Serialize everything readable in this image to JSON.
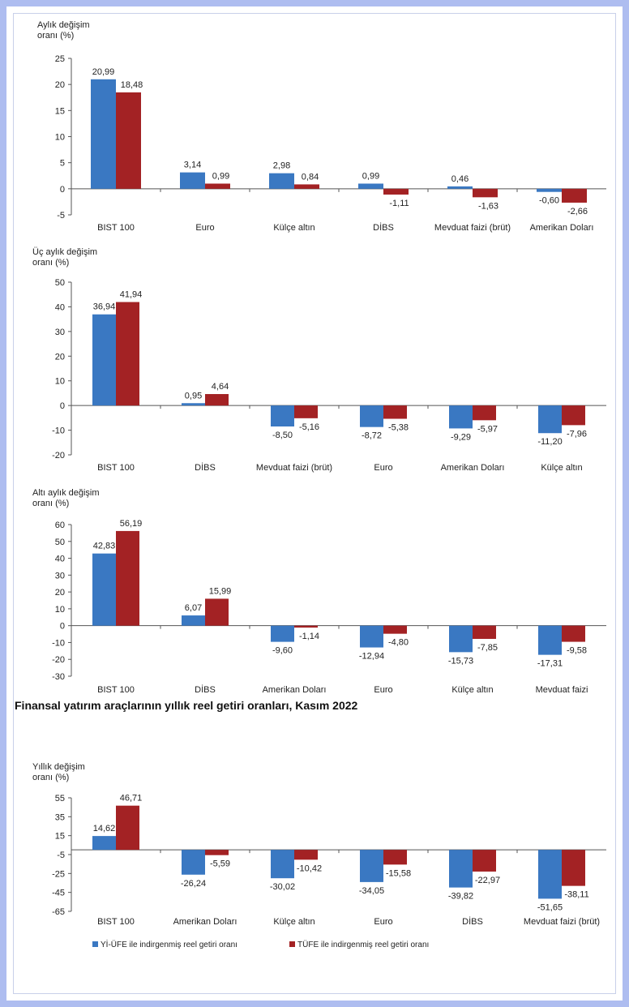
{
  "colors": {
    "series1": "#3a78c2",
    "series2": "#a32224"
  },
  "legend": {
    "series1": "Yİ-ÜFE ile indirgenmiş reel getiri oranı",
    "series2": "TÜFE ile indirgenmiş reel getiri oranı"
  },
  "chart_data": [
    {
      "type": "bar",
      "ylabel": [
        "Aylık değişim",
        "oranı (%)"
      ],
      "yticks": [
        25,
        20,
        15,
        10,
        5,
        0,
        -5
      ],
      "ylim": [
        -5,
        25
      ],
      "categories": [
        "BIST 100",
        "Euro",
        "Külçe altın",
        "DİBS",
        "Mevduat faizi (brüt)",
        "Amerikan Doları"
      ],
      "series": [
        {
          "name": "Yİ-ÜFE ile indirgenmiş reel getiri oranı",
          "values": [
            20.99,
            3.14,
            2.98,
            0.99,
            0.46,
            -0.6
          ]
        },
        {
          "name": "TÜFE ile indirgenmiş reel getiri oranı",
          "values": [
            18.48,
            0.99,
            0.84,
            -1.11,
            -1.63,
            -2.66
          ]
        }
      ],
      "value_labels": [
        [
          "20,99",
          "3,14",
          "2,98",
          "0,99",
          "0,46",
          "-0,60"
        ],
        [
          "18,48",
          "0,99",
          "0,84",
          "-1,11",
          "-1,63",
          "-2,66"
        ]
      ]
    },
    {
      "type": "bar",
      "ylabel": [
        "Üç aylık değişim",
        "oranı (%)"
      ],
      "yticks": [
        50,
        40,
        30,
        20,
        10,
        0,
        -10,
        -20
      ],
      "ylim": [
        -20,
        50
      ],
      "categories": [
        "BIST 100",
        "DİBS",
        "Mevduat faizi (brüt)",
        "Euro",
        "Amerikan Doları",
        "Külçe altın"
      ],
      "series": [
        {
          "name": "Yİ-ÜFE ile indirgenmiş reel getiri oranı",
          "values": [
            36.94,
            0.95,
            -8.5,
            -8.72,
            -9.29,
            -11.2
          ]
        },
        {
          "name": "TÜFE ile indirgenmiş reel getiri oranı",
          "values": [
            41.94,
            4.64,
            -5.16,
            -5.38,
            -5.97,
            -7.96
          ]
        }
      ],
      "value_labels": [
        [
          "36,94",
          "0,95",
          "-8,50",
          "-8,72",
          "-9,29",
          "-11,20"
        ],
        [
          "41,94",
          "4,64",
          "-5,16",
          "-5,38",
          "-5,97",
          "-7,96"
        ]
      ]
    },
    {
      "type": "bar",
      "ylabel": [
        "Altı aylık değişim",
        "oranı (%)"
      ],
      "yticks": [
        60,
        50,
        40,
        30,
        20,
        10,
        0,
        -10,
        -20,
        -30
      ],
      "ylim": [
        -30,
        60
      ],
      "categories": [
        "BIST 100",
        "DİBS",
        "Amerikan Doları",
        "Euro",
        "Külçe altın",
        "Mevduat faizi"
      ],
      "series": [
        {
          "name": "Yİ-ÜFE ile indirgenmiş reel getiri oranı",
          "values": [
            42.83,
            6.07,
            -9.6,
            -12.94,
            -15.73,
            -17.31
          ]
        },
        {
          "name": "TÜFE ile indirgenmiş reel getiri oranı",
          "values": [
            56.19,
            15.99,
            -1.14,
            -4.8,
            -7.85,
            -9.58
          ]
        }
      ],
      "value_labels": [
        [
          "42,83",
          "6,07",
          "-9,60",
          "-12,94",
          "-15,73",
          "-17,31"
        ],
        [
          "56,19",
          "15,99",
          "-1,14",
          "-4,80",
          "-7,85",
          "-9,58"
        ]
      ]
    },
    {
      "type": "bar",
      "title": "Finansal yatırım araçlarının yıllık reel getiri oranları, Kasım 2022",
      "ylabel": [
        "Yıllık değişim",
        "oranı (%)"
      ],
      "yticks": [
        55,
        35,
        15,
        -5,
        -25,
        -45,
        -65
      ],
      "ylim": [
        -65,
        55
      ],
      "categories": [
        "BIST 100",
        "Amerikan Doları",
        "Külçe altın",
        "Euro",
        "DİBS",
        "Mevduat faizi (brüt)"
      ],
      "series": [
        {
          "name": "Yİ-ÜFE ile indirgenmiş reel getiri oranı",
          "values": [
            14.62,
            -26.24,
            -30.02,
            -34.05,
            -39.82,
            -51.65
          ]
        },
        {
          "name": "TÜFE ile indirgenmiş reel getiri oranı",
          "values": [
            46.71,
            -5.59,
            -10.42,
            -15.58,
            -22.97,
            -38.11
          ]
        }
      ],
      "value_labels": [
        [
          "14,62",
          "-26,24",
          "-30,02",
          "-34,05",
          "-39,82",
          "-51,65"
        ],
        [
          "46,71",
          "-5,59",
          "-10,42",
          "-15,58",
          "-22,97",
          "-38,11"
        ]
      ]
    }
  ]
}
